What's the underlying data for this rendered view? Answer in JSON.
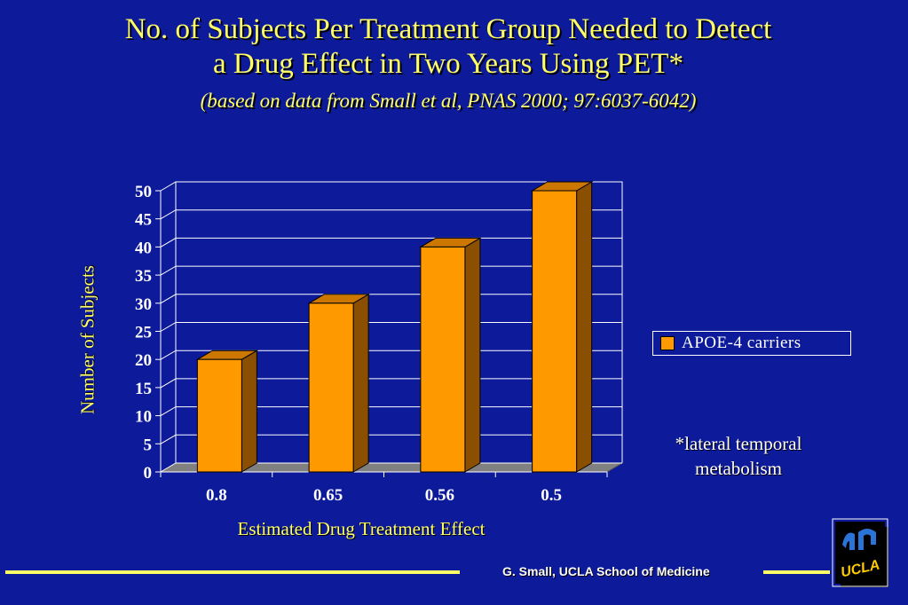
{
  "title_lines": [
    "No. of Subjects Per Treatment Group Needed to Detect",
    "a Drug Effect in Two Years Using PET*"
  ],
  "subtitle": "(based on data from Small et al, PNAS 2000; 97:6037-6042)",
  "note_lines": [
    "*lateral temporal",
    "metabolism"
  ],
  "footer": "G. Small, UCLA School of Medicine",
  "logo_text": "UCLA",
  "colors": {
    "background": "#0d1a9a",
    "title": "#ffff66",
    "bar_front": "#ff9900",
    "bar_top": "#cc7700",
    "bar_side": "#8a4f00"
  },
  "chart_data": {
    "type": "bar",
    "categories": [
      "0.8",
      "0.65",
      "0.56",
      "0.5"
    ],
    "series": [
      {
        "name": "APOE-4 carriers",
        "values": [
          20,
          30,
          40,
          50
        ]
      }
    ],
    "xlabel": "Estimated Drug Treatment Effect",
    "ylabel": "Number of Subjects",
    "ylim": [
      0,
      50
    ],
    "yticks": [
      0,
      5,
      10,
      15,
      20,
      25,
      30,
      35,
      40,
      45,
      50
    ],
    "grid": true,
    "legend_position": "right",
    "style": "3d"
  }
}
